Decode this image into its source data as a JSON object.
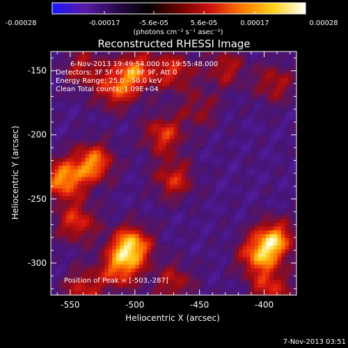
{
  "colorbar": {
    "tick_labels": [
      "-0.00028",
      "-0.00017",
      "-5.6e-05",
      "5.6e-05",
      "0.00017",
      "0.00028"
    ],
    "unit_label": "(photons cm⁻² s⁻¹ asec⁻²)",
    "range": [
      -0.00028,
      0.00028
    ],
    "colors": [
      "#1818ff",
      "#5a1aa8",
      "#2a0a50",
      "#000000",
      "#6a0000",
      "#d01010",
      "#ff7a00",
      "#ffd21a",
      "#ffffff"
    ]
  },
  "title": "Reconstructed RHESSI Image",
  "info": {
    "line1": "6-Nov-2013 19:49:54.000 to 19:55:48.000",
    "line2": "Detectors: 3F 5F 6F 7F 8F 9F, Att 0",
    "line3": "Energy Range: 25.0 - 50.0 keV",
    "line4": "Clean    Total counts: 1.09E+04"
  },
  "peak_label": "Position of Peak = [-503,-287]",
  "axes": {
    "xlabel": "Heliocentric X (arcsec)",
    "ylabel": "Heliocentric Y (arcsec)",
    "xticks": [
      -550,
      -500,
      -450,
      -400
    ],
    "yticks": [
      -150,
      -200,
      -250,
      -300
    ],
    "xlim": [
      -565,
      -375
    ],
    "ylim": [
      -325,
      -135
    ]
  },
  "peak": {
    "x": -503,
    "y": -287
  },
  "sources": [
    {
      "x": -503,
      "y": -287,
      "amp": 1.0
    },
    {
      "x": -512,
      "y": -305,
      "amp": 0.65
    },
    {
      "x": -555,
      "y": -235,
      "amp": 0.85
    },
    {
      "x": -532,
      "y": -222,
      "amp": 0.8
    },
    {
      "x": -545,
      "y": -268,
      "amp": 0.6
    },
    {
      "x": -500,
      "y": -150,
      "amp": 0.7
    },
    {
      "x": -515,
      "y": -165,
      "amp": 0.6
    },
    {
      "x": -470,
      "y": -150,
      "amp": 0.55
    },
    {
      "x": -478,
      "y": -200,
      "amp": 0.6
    },
    {
      "x": -470,
      "y": -235,
      "amp": 0.55
    },
    {
      "x": -430,
      "y": -148,
      "amp": 0.45
    },
    {
      "x": -392,
      "y": -160,
      "amp": 0.45
    },
    {
      "x": -392,
      "y": -282,
      "amp": 0.85
    },
    {
      "x": -405,
      "y": -295,
      "amp": 0.7
    },
    {
      "x": -395,
      "y": -320,
      "amp": 0.55
    },
    {
      "x": -540,
      "y": -320,
      "amp": 0.5
    },
    {
      "x": -470,
      "y": -315,
      "amp": 0.45
    },
    {
      "x": -450,
      "y": -180,
      "amp": 0.35
    },
    {
      "x": -540,
      "y": -148,
      "amp": 0.45
    }
  ],
  "footer_timestamp": "7-Nov-2013 03:51"
}
